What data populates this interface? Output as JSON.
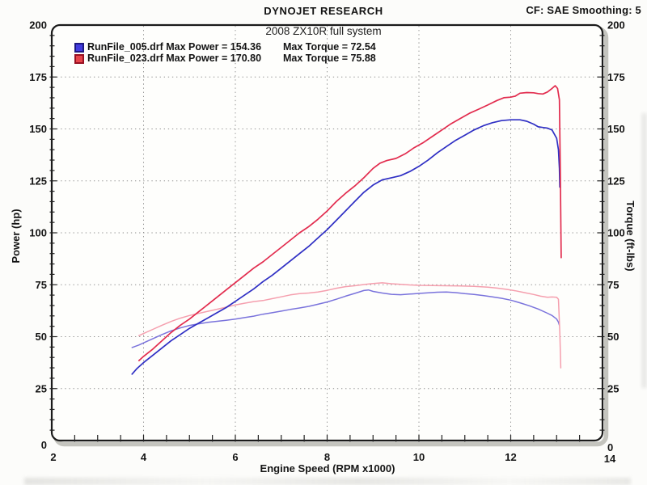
{
  "legend": {
    "rows": [
      {
        "label": "RunFile_005.drf Max Power = 154.36",
        "torque": "Max Torque = 72.54",
        "swatch_fill": "#423cdf",
        "swatch_border": "#1d1880"
      },
      {
        "label": "RunFile_023.drf Max Power = 170.80",
        "torque": "Max Torque = 75.88",
        "swatch_fill": "#e6444a",
        "swatch_border": "#971122"
      }
    ]
  },
  "chart_data": {
    "type": "line",
    "title": "DYNOJET RESEARCH",
    "subtitle": "2008 ZX10R full system",
    "correction": "CF: SAE  Smoothing: 5",
    "xlabel": "Engine Speed (RPM x1000)",
    "ylabel_left": "Power (hp)",
    "ylabel_right": "Torque (ft-lbs)",
    "xlim": [
      2,
      14
    ],
    "ylim": [
      0,
      200
    ],
    "x_major_ticks": [
      2,
      4,
      6,
      8,
      10,
      12,
      14
    ],
    "x_tick_labels": [
      "2",
      "4",
      "6",
      "8",
      "10",
      "12",
      "14"
    ],
    "x_minor_tick_step": 0.5,
    "x_gridlines": [
      4,
      6,
      8,
      10,
      12
    ],
    "y_major_ticks": [
      200,
      175,
      150,
      125,
      100,
      75,
      50,
      25,
      0
    ],
    "y_tick_labels": [
      "200",
      "175",
      "150",
      "125",
      "100",
      "75",
      "50",
      "25",
      "0"
    ],
    "y_minor_tick_step": 5,
    "y_gridlines": [
      25,
      50,
      75,
      100,
      125,
      150,
      175
    ],
    "grid_style": "dotted",
    "legend_position": "top-left-inside",
    "series": [
      {
        "id": "runfile-005-torque",
        "name": "RunFile_005.drf Torque (ft-lbs)",
        "unit": "ft-lbs",
        "color": "#7a73dc",
        "width": 1.5,
        "points": [
          [
            3.75,
            44.8
          ],
          [
            3.9,
            46
          ],
          [
            4,
            47
          ],
          [
            4.2,
            49
          ],
          [
            4.4,
            51
          ],
          [
            4.6,
            52.8
          ],
          [
            4.8,
            54.2
          ],
          [
            5,
            55.4
          ],
          [
            5.2,
            56.2
          ],
          [
            5.4,
            56.9
          ],
          [
            5.6,
            57.4
          ],
          [
            5.8,
            57.9
          ],
          [
            6,
            58.5
          ],
          [
            6.2,
            59.2
          ],
          [
            6.4,
            59.9
          ],
          [
            6.6,
            60.8
          ],
          [
            6.8,
            61.5
          ],
          [
            7,
            62.3
          ],
          [
            7.2,
            63.1
          ],
          [
            7.4,
            63.8
          ],
          [
            7.6,
            64.6
          ],
          [
            7.8,
            65.6
          ],
          [
            8,
            66.7
          ],
          [
            8.2,
            68
          ],
          [
            8.4,
            69.5
          ],
          [
            8.6,
            70.8
          ],
          [
            8.8,
            72.2
          ],
          [
            8.9,
            72.5
          ],
          [
            9,
            71.8
          ],
          [
            9.2,
            71
          ],
          [
            9.4,
            70.4
          ],
          [
            9.6,
            70.2
          ],
          [
            9.8,
            70.5
          ],
          [
            10,
            70.8
          ],
          [
            10.2,
            71.1
          ],
          [
            10.4,
            71.4
          ],
          [
            10.6,
            71.5
          ],
          [
            10.8,
            71.2
          ],
          [
            11,
            70.7
          ],
          [
            11.2,
            70.3
          ],
          [
            11.4,
            69.8
          ],
          [
            11.6,
            69.2
          ],
          [
            11.8,
            68.5
          ],
          [
            12,
            67.6
          ],
          [
            12.2,
            66.3
          ],
          [
            12.4,
            64.9
          ],
          [
            12.6,
            63.3
          ],
          [
            12.8,
            61.3
          ],
          [
            12.9,
            60.2
          ],
          [
            13,
            58.5
          ],
          [
            13.04,
            57
          ],
          [
            13.06,
            55.5
          ]
        ]
      },
      {
        "id": "runfile-023-torque",
        "name": "RunFile_023.drf Torque (ft-lbs)",
        "unit": "ft-lbs",
        "color": "#f59fae",
        "width": 1.5,
        "points": [
          [
            3.9,
            50.5
          ],
          [
            4,
            51.5
          ],
          [
            4.2,
            53.5
          ],
          [
            4.4,
            55.5
          ],
          [
            4.6,
            57.3
          ],
          [
            4.8,
            58.9
          ],
          [
            5,
            60.2
          ],
          [
            5.2,
            61.2
          ],
          [
            5.4,
            62.2
          ],
          [
            5.6,
            63.2
          ],
          [
            5.8,
            64.2
          ],
          [
            6,
            65.3
          ],
          [
            6.2,
            66.1
          ],
          [
            6.4,
            66.9
          ],
          [
            6.6,
            67.4
          ],
          [
            6.8,
            68.3
          ],
          [
            7,
            69.2
          ],
          [
            7.2,
            70.1
          ],
          [
            7.4,
            70.7
          ],
          [
            7.6,
            71
          ],
          [
            7.8,
            71.5
          ],
          [
            8,
            72.3
          ],
          [
            8.2,
            73.3
          ],
          [
            8.4,
            74.1
          ],
          [
            8.6,
            74.5
          ],
          [
            8.8,
            75.1
          ],
          [
            9,
            75.6
          ],
          [
            9.2,
            75.9
          ],
          [
            9.4,
            75.5
          ],
          [
            9.6,
            75.2
          ],
          [
            9.8,
            74.9
          ],
          [
            10,
            74.7
          ],
          [
            10.3,
            74.6
          ],
          [
            10.6,
            74.5
          ],
          [
            10.9,
            74.4
          ],
          [
            11.2,
            74.2
          ],
          [
            11.5,
            73.8
          ],
          [
            11.7,
            73.4
          ],
          [
            11.9,
            72.8
          ],
          [
            12.1,
            72.1
          ],
          [
            12.3,
            71.2
          ],
          [
            12.5,
            70.3
          ],
          [
            12.65,
            69.5
          ],
          [
            12.8,
            69
          ],
          [
            12.9,
            69.1
          ],
          [
            13,
            69
          ],
          [
            13.04,
            68
          ],
          [
            13.07,
            52
          ],
          [
            13.09,
            35
          ]
        ]
      },
      {
        "id": "runfile-005-power",
        "name": "RunFile_005.drf Power (hp)",
        "unit": "hp",
        "color": "#2f2fc4",
        "width": 1.7,
        "points": [
          [
            3.75,
            32
          ],
          [
            3.85,
            34.5
          ],
          [
            4,
            37.5
          ],
          [
            4.2,
            41
          ],
          [
            4.4,
            44.5
          ],
          [
            4.6,
            48
          ],
          [
            4.8,
            51
          ],
          [
            5,
            54
          ],
          [
            5.2,
            56.5
          ],
          [
            5.4,
            59
          ],
          [
            5.6,
            61.5
          ],
          [
            5.8,
            64
          ],
          [
            6,
            67
          ],
          [
            6.2,
            70
          ],
          [
            6.4,
            73
          ],
          [
            6.6,
            76.5
          ],
          [
            6.8,
            79.5
          ],
          [
            7,
            83
          ],
          [
            7.2,
            86.5
          ],
          [
            7.4,
            90
          ],
          [
            7.6,
            93.5
          ],
          [
            7.8,
            97.5
          ],
          [
            8,
            101.5
          ],
          [
            8.2,
            106
          ],
          [
            8.4,
            110.5
          ],
          [
            8.6,
            115
          ],
          [
            8.8,
            119.5
          ],
          [
            9,
            123
          ],
          [
            9.2,
            125.5
          ],
          [
            9.4,
            126.5
          ],
          [
            9.6,
            127.5
          ],
          [
            9.8,
            129.5
          ],
          [
            10,
            132
          ],
          [
            10.2,
            135
          ],
          [
            10.4,
            138.5
          ],
          [
            10.6,
            141.5
          ],
          [
            10.8,
            144.5
          ],
          [
            11,
            147
          ],
          [
            11.2,
            149.5
          ],
          [
            11.4,
            151.5
          ],
          [
            11.6,
            153
          ],
          [
            11.8,
            154
          ],
          [
            12,
            154.4
          ],
          [
            12.2,
            154.4
          ],
          [
            12.35,
            153.7
          ],
          [
            12.5,
            152.3
          ],
          [
            12.6,
            151
          ],
          [
            12.7,
            150.7
          ],
          [
            12.8,
            150.4
          ],
          [
            12.9,
            149.5
          ],
          [
            13,
            145.5
          ],
          [
            13.04,
            140
          ],
          [
            13.06,
            131
          ],
          [
            13.07,
            122
          ]
        ]
      },
      {
        "id": "runfile-023-power",
        "name": "RunFile_023.drf Power (hp)",
        "unit": "hp",
        "color": "#e22c4e",
        "width": 1.7,
        "points": [
          [
            3.9,
            38.5
          ],
          [
            4,
            40.5
          ],
          [
            4.2,
            44
          ],
          [
            4.4,
            48
          ],
          [
            4.6,
            52
          ],
          [
            4.8,
            55.5
          ],
          [
            5,
            58.5
          ],
          [
            5.2,
            62
          ],
          [
            5.4,
            65.5
          ],
          [
            5.6,
            69
          ],
          [
            5.8,
            72.5
          ],
          [
            6,
            76
          ],
          [
            6.2,
            79.5
          ],
          [
            6.4,
            83
          ],
          [
            6.6,
            86
          ],
          [
            6.8,
            89.5
          ],
          [
            7,
            93
          ],
          [
            7.2,
            96.5
          ],
          [
            7.4,
            100
          ],
          [
            7.6,
            103
          ],
          [
            7.8,
            106.5
          ],
          [
            8,
            110.5
          ],
          [
            8.2,
            115
          ],
          [
            8.4,
            119
          ],
          [
            8.6,
            122.5
          ],
          [
            8.8,
            126.5
          ],
          [
            9,
            131
          ],
          [
            9.15,
            133.5
          ],
          [
            9.3,
            134.8
          ],
          [
            9.5,
            135.8
          ],
          [
            9.7,
            138
          ],
          [
            9.9,
            141
          ],
          [
            10.1,
            143.5
          ],
          [
            10.3,
            146.5
          ],
          [
            10.5,
            149.5
          ],
          [
            10.7,
            152.5
          ],
          [
            10.9,
            155
          ],
          [
            11.1,
            157.5
          ],
          [
            11.3,
            159.5
          ],
          [
            11.5,
            161.5
          ],
          [
            11.7,
            163.7
          ],
          [
            11.85,
            165
          ],
          [
            12,
            165.3
          ],
          [
            12.1,
            165.8
          ],
          [
            12.2,
            167.2
          ],
          [
            12.35,
            167.5
          ],
          [
            12.5,
            167.4
          ],
          [
            12.6,
            167
          ],
          [
            12.7,
            166.8
          ],
          [
            12.8,
            167.8
          ],
          [
            12.9,
            169.5
          ],
          [
            12.97,
            170.8
          ],
          [
            13.02,
            169.5
          ],
          [
            13.06,
            164
          ],
          [
            13.08,
            130
          ],
          [
            13.1,
            88
          ]
        ]
      }
    ]
  }
}
